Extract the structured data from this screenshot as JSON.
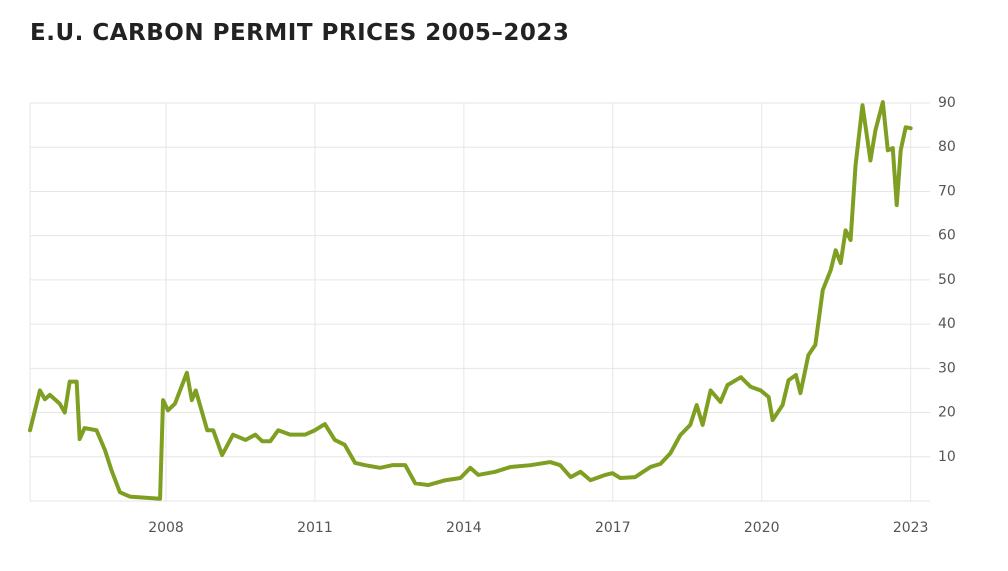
{
  "chart_data": {
    "type": "line",
    "title": "E.U. CARBON PERMIT PRICES 2005–2023",
    "x": [
      2005.26,
      2005.46,
      2005.56,
      2005.66,
      2005.86,
      2005.96,
      2006.06,
      2006.2,
      2006.26,
      2006.36,
      2006.6,
      2006.77,
      2006.9,
      2007.07,
      2007.27,
      2007.88,
      2007.94,
      2008.04,
      2008.18,
      2008.42,
      2008.52,
      2008.6,
      2008.83,
      2008.95,
      2009.13,
      2009.35,
      2009.6,
      2009.8,
      2009.94,
      2010.1,
      2010.26,
      2010.5,
      2010.8,
      2011.0,
      2011.2,
      2011.4,
      2011.6,
      2011.81,
      2012.01,
      2012.31,
      2012.56,
      2012.82,
      2013.02,
      2013.28,
      2013.63,
      2013.93,
      2014.13,
      2014.29,
      2014.63,
      2014.94,
      2015.34,
      2015.74,
      2015.94,
      2016.15,
      2016.35,
      2016.55,
      2016.85,
      2016.99,
      2017.15,
      2017.45,
      2017.76,
      2017.96,
      2018.16,
      2018.36,
      2018.56,
      2018.69,
      2018.81,
      2018.97,
      2019.17,
      2019.31,
      2019.58,
      2019.78,
      2019.98,
      2020.14,
      2020.22,
      2020.42,
      2020.54,
      2020.69,
      2020.78,
      2020.94,
      2021.08,
      2021.23,
      2021.39,
      2021.49,
      2021.59,
      2021.69,
      2021.79,
      2021.89,
      2022.03,
      2022.19,
      2022.29,
      2022.44,
      2022.54,
      2022.64,
      2022.72,
      2022.8,
      2022.9,
      2023.0
    ],
    "series": [
      {
        "name": "EU carbon permit price",
        "color": "#7f9f22",
        "values": [
          16,
          25,
          23,
          24,
          22,
          20,
          27,
          27,
          14,
          16.5,
          16,
          11.5,
          7,
          2,
          1,
          0.5,
          22.8,
          20.5,
          22,
          29,
          22.8,
          25,
          16,
          16,
          10.4,
          15,
          13.8,
          15,
          13.5,
          13.5,
          16,
          15,
          15,
          16,
          17.4,
          13.8,
          12.7,
          8.6,
          8.1,
          7.5,
          8.1,
          8.1,
          4,
          3.6,
          4.7,
          5.2,
          7.5,
          5.9,
          6.6,
          7.7,
          8.1,
          8.8,
          8.1,
          5.4,
          6.6,
          4.7,
          5.9,
          6.3,
          5.2,
          5.4,
          7.7,
          8.4,
          10.8,
          14.9,
          17.2,
          21.7,
          17.2,
          25,
          22.4,
          26.2,
          28,
          25.8,
          25,
          23.5,
          18.3,
          21.7,
          27.3,
          28.5,
          24.4,
          33,
          35.3,
          47.7,
          52.2,
          56.7,
          53.8,
          61.2,
          59,
          75.9,
          89.5,
          77,
          83.8,
          90.2,
          79.3,
          79.8,
          66.9,
          79.3,
          84.5,
          84.3
        ]
      }
    ],
    "xlim": [
      2005.26,
      2023.39
    ],
    "xticks": [
      2008,
      2011,
      2014,
      2017,
      2020,
      2023
    ],
    "ylim": [
      0,
      90
    ],
    "yticks": [
      10,
      20,
      30,
      40,
      50,
      60,
      70,
      80,
      90
    ],
    "grid": true
  }
}
